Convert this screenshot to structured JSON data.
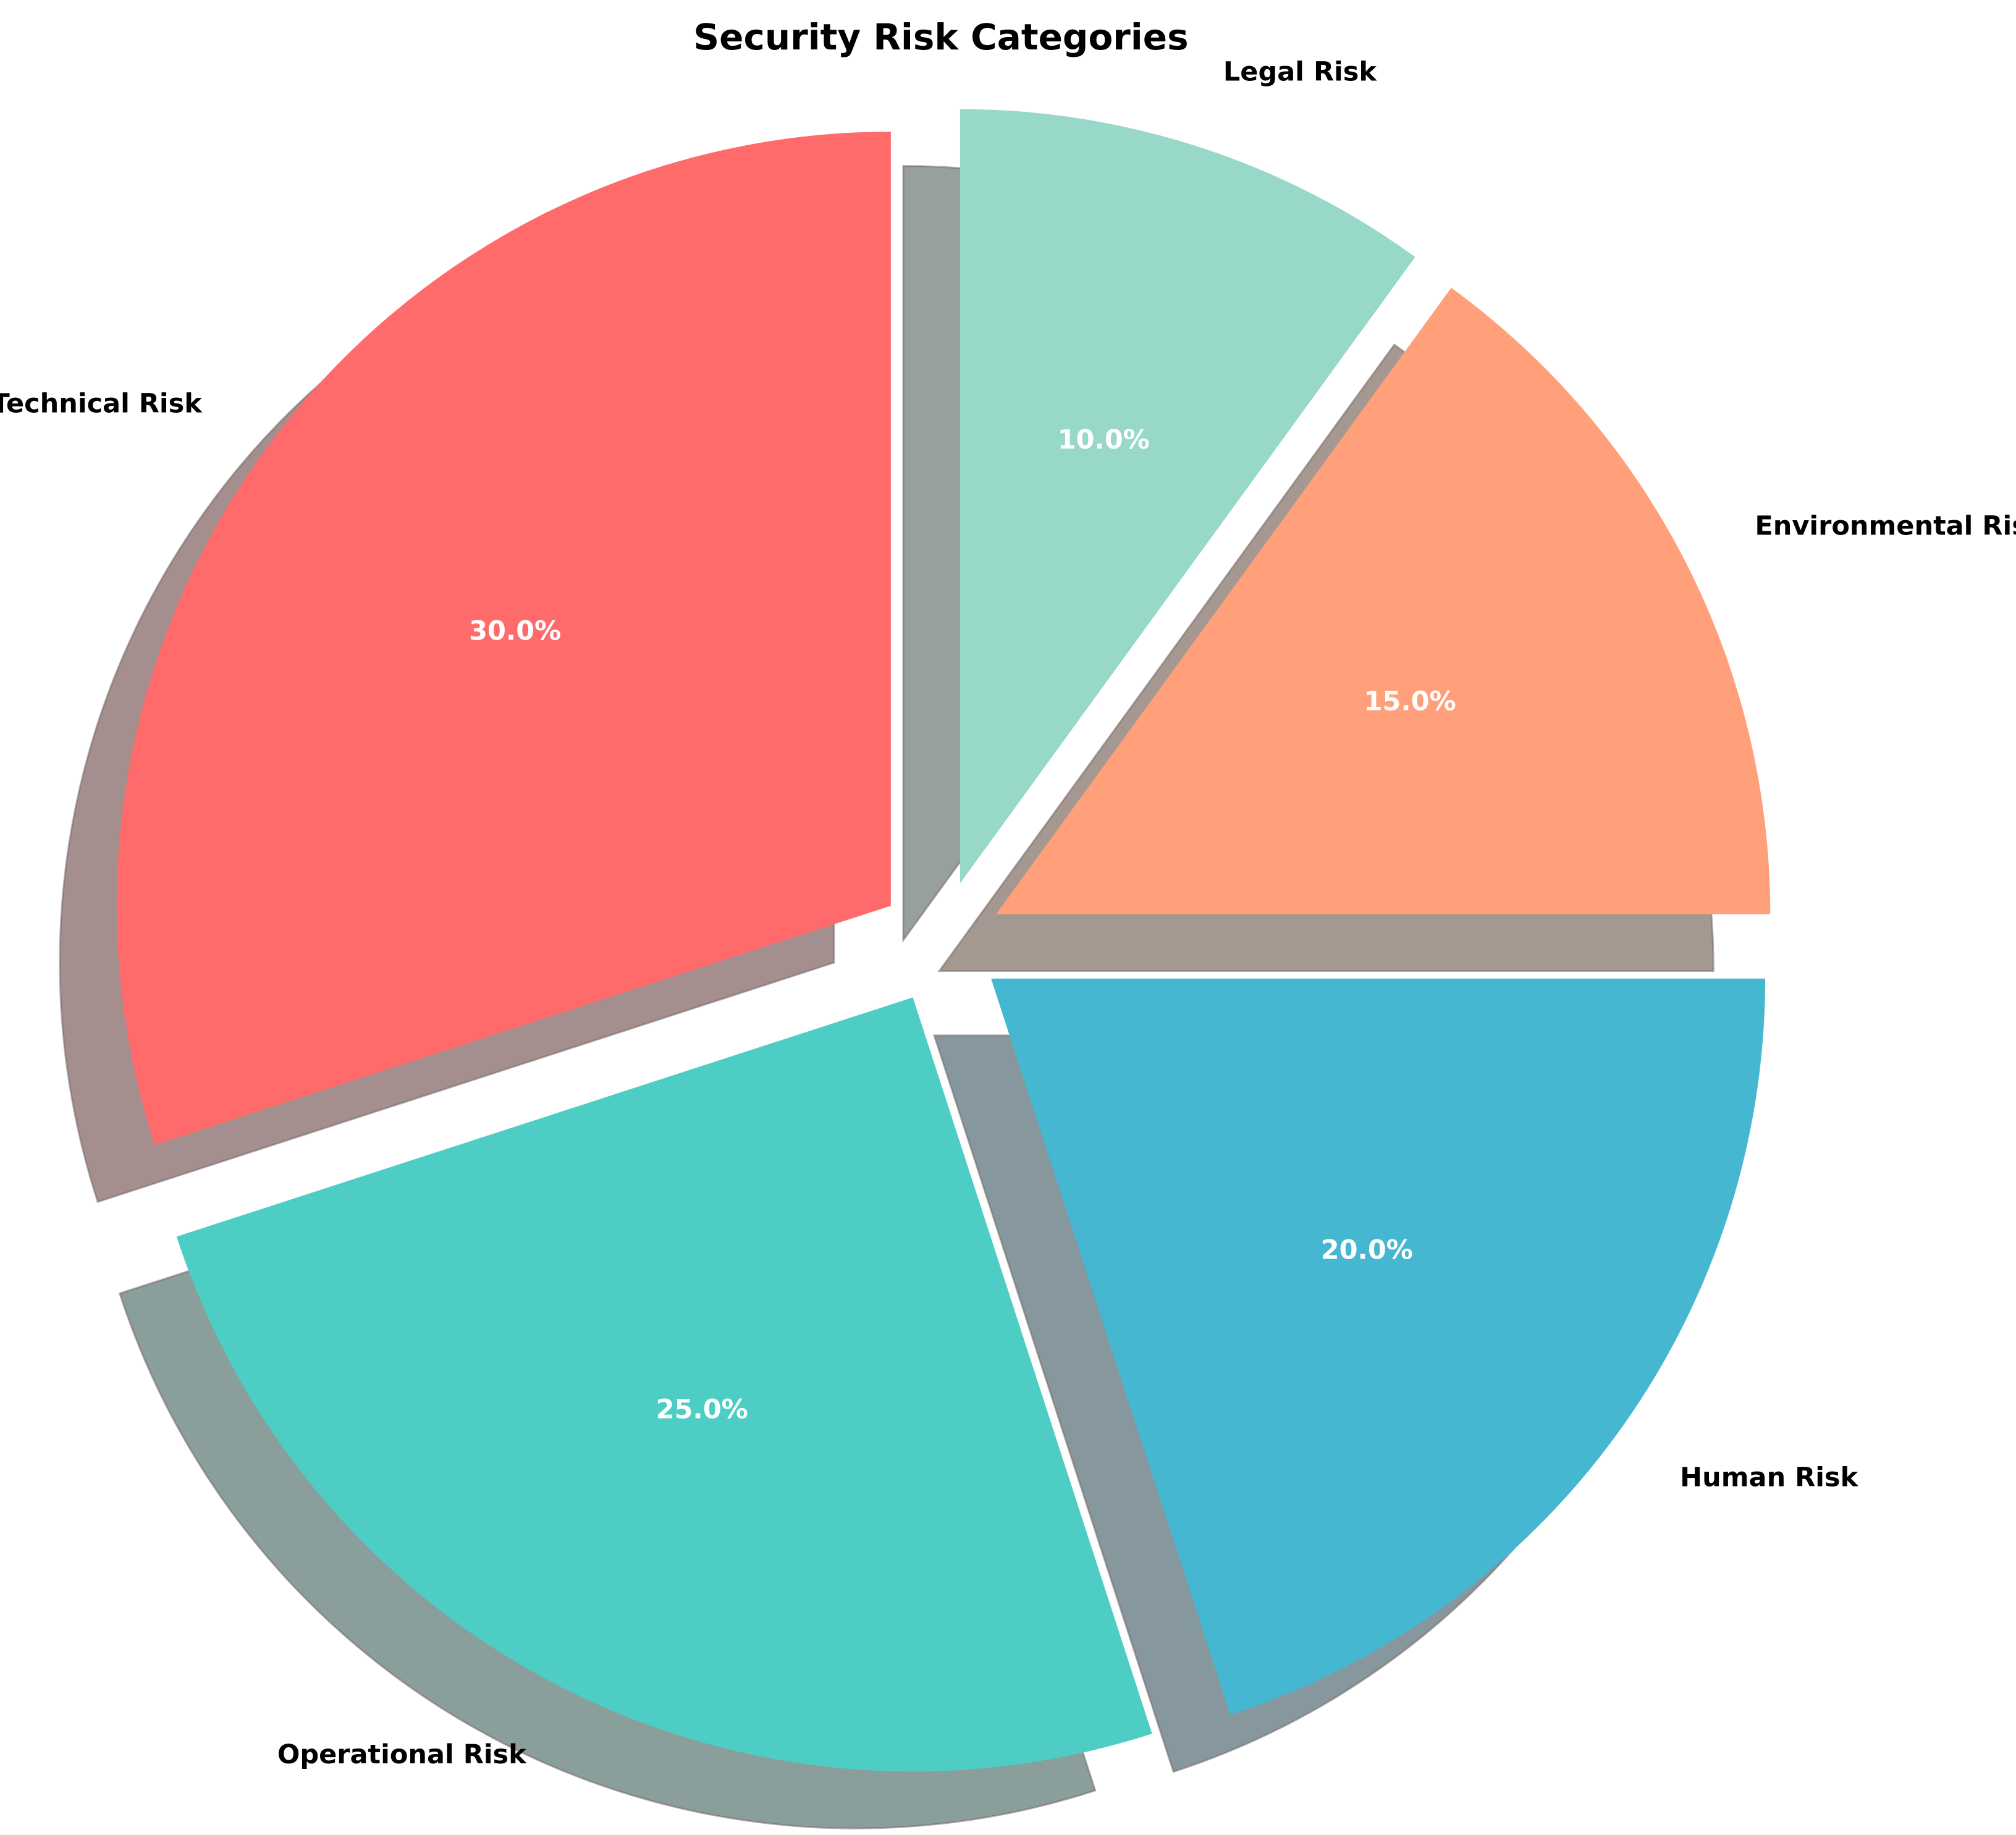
{
  "chart_data": {
    "type": "pie",
    "title": "Security Risk Categories",
    "slices": [
      {
        "label": "Technical Risk",
        "value": 30,
        "pct_label": "30.0%",
        "color": "#FF6B6B",
        "shadow": "#A48E8E"
      },
      {
        "label": "Operational Risk",
        "value": 25,
        "pct_label": "25.0%",
        "color": "#4ECDC4",
        "shadow": "#8A9E9B"
      },
      {
        "label": "Human Risk",
        "value": 20,
        "pct_label": "20.0%",
        "color": "#45B7D1",
        "shadow": "#86979D"
      },
      {
        "label": "Environmental Risk",
        "value": 15,
        "pct_label": "15.0%",
        "color": "#FFA07A",
        "shadow": "#A59890"
      },
      {
        "label": "Legal Risk",
        "value": 10,
        "pct_label": "10.0%",
        "color": "#98D8C8",
        "shadow": "#97A09E"
      }
    ],
    "start_angle_deg": 90,
    "direction": "counterclockwise",
    "shadow": true,
    "legend": "none"
  }
}
